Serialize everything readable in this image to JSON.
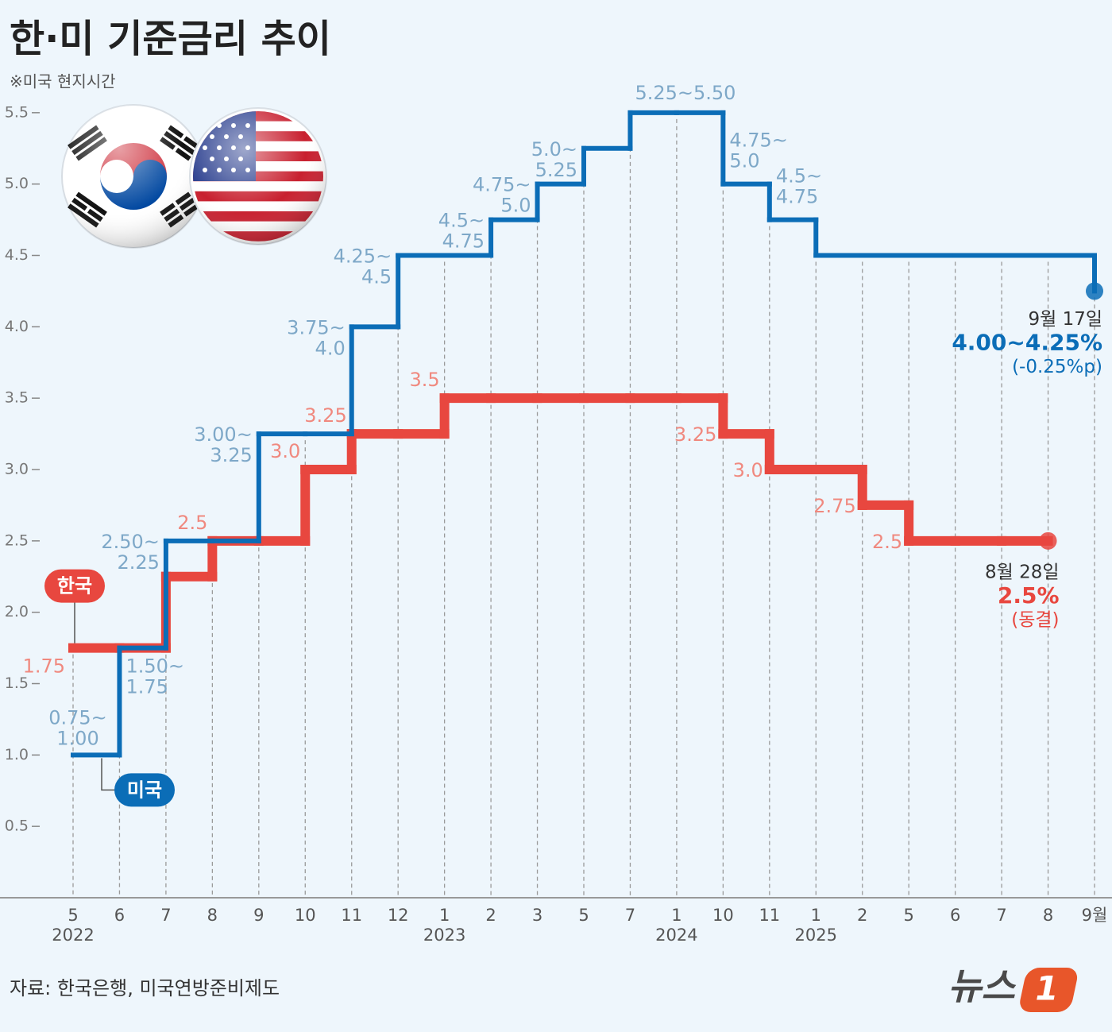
{
  "chart_data": {
    "type": "step",
    "title": "한·미 기준금리 추이",
    "subtitle": "※미국 현지시간",
    "categories": [
      "5",
      "6",
      "7",
      "8",
      "9",
      "10",
      "11",
      "12",
      "1",
      "2",
      "3",
      "5",
      "7",
      "1",
      "10",
      "11",
      "1",
      "2",
      "5",
      "6",
      "7",
      "8",
      "9월"
    ],
    "years": [
      "2022",
      null,
      null,
      null,
      null,
      null,
      null,
      null,
      "2023",
      null,
      null,
      null,
      null,
      "2024",
      null,
      null,
      "2025",
      null,
      null,
      null,
      null,
      null,
      null
    ],
    "ylim": [
      0,
      6
    ],
    "yticks": [
      0.5,
      {
        "value": 1,
        "label": "1.0"
      },
      1.5,
      {
        "value": 2,
        "label": "2.0"
      },
      2.5,
      {
        "value": 3,
        "label": "3.0"
      },
      3.5,
      {
        "value": 4,
        "label": "4.0"
      },
      4.5,
      {
        "value": 5,
        "label": "5.0"
      },
      5.5
    ],
    "grid": true,
    "series": [
      {
        "name": "미국",
        "color": "#0b6db7",
        "label_color": "#7ea8c8",
        "values": [
          1.0,
          1.75,
          2.5,
          2.5,
          3.25,
          3.25,
          4.0,
          4.5,
          4.5,
          4.75,
          5.0,
          5.25,
          5.5,
          5.5,
          5.0,
          4.75,
          4.5,
          4.5,
          4.5,
          4.5,
          4.5,
          4.5,
          4.25
        ],
        "value_labels": [
          "0.75~1.00",
          "1.50~1.75",
          "2.50~2.25",
          null,
          "3.00~3.25",
          null,
          "3.75~4.0",
          "4.25~4.5",
          null,
          "4.5~4.75",
          "4.75~5.0",
          "5.0~5.25",
          "5.25~5.50",
          null,
          "4.75~5.0",
          "4.5~4.75",
          null,
          null,
          null,
          null,
          null,
          null,
          null
        ],
        "end_note": [
          "9월 17일",
          "4.00~4.25%",
          "(-0.25%p)"
        ]
      },
      {
        "name": "한국",
        "color": "#e8473f",
        "label_color": "#f0897f",
        "values": [
          1.75,
          1.75,
          2.25,
          2.5,
          2.5,
          3.0,
          3.25,
          3.25,
          3.5,
          3.5,
          3.5,
          3.5,
          3.5,
          3.5,
          3.25,
          3.0,
          3.0,
          2.75,
          2.5,
          2.5,
          2.5,
          2.5,
          null
        ],
        "value_labels": [
          "1.75",
          null,
          null,
          "2.5",
          null,
          "3.0",
          "3.25",
          null,
          "3.5",
          null,
          null,
          null,
          null,
          null,
          "3.25",
          "3.0",
          null,
          "2.75",
          "2.5",
          null,
          null,
          null,
          null
        ],
        "end_note": [
          "8월 28일",
          "2.5%",
          "(동결)"
        ]
      }
    ]
  },
  "source": "자료: 한국은행, 미국연방준비제도",
  "logo": {
    "text": "뉴스",
    "mark": "1"
  }
}
